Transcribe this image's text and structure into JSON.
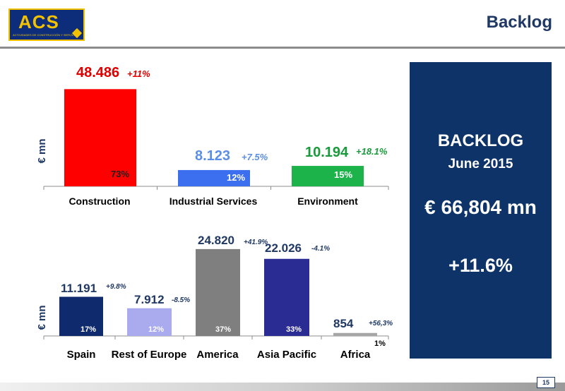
{
  "header": {
    "logo_text": "ACS",
    "logo_subtitle": "ACTIVIDADES DE CONSTRUCCIÓN Y SERVICIOS",
    "title": "Backlog"
  },
  "summary": {
    "heading": "BACKLOG",
    "date": "June 2015",
    "total": "€ 66,804 mn",
    "growth": "+11.6%"
  },
  "footer": {
    "page_number": "15"
  },
  "chart_data": [
    {
      "type": "bar",
      "ylabel": "€ mn",
      "categories": [
        "Construction",
        "Industrial Services",
        "Environment"
      ],
      "values": [
        48486,
        8123,
        10194
      ],
      "value_labels": [
        "48.486",
        "8.123",
        "10.194"
      ],
      "growth_labels": [
        "+11%",
        "+7.5%",
        "+18.1%"
      ],
      "share_labels": [
        "73%",
        "12%",
        "15%"
      ],
      "colors": [
        "#ff0000",
        "#3b6ff0",
        "#1db34b"
      ],
      "value_colors": [
        "#e00000",
        "#5b8ee6",
        "#1a9a3c"
      ],
      "growth_colors": [
        "#e00000",
        "#5b8ee6",
        "#1a9a3c"
      ],
      "ylim": [
        0,
        50000
      ],
      "grid": false
    },
    {
      "type": "bar",
      "ylabel": "€ mn",
      "categories": [
        "Spain",
        "Rest of Europe",
        "America",
        "Asia Pacific",
        "Africa"
      ],
      "values": [
        11191,
        7912,
        24820,
        22026,
        854
      ],
      "value_labels": [
        "11.191",
        "7.912",
        "24.820",
        "22.026",
        "854"
      ],
      "growth_labels": [
        "+9.8%",
        "-8.5%",
        "+41.9%",
        "-4.1%",
        "+56,3%"
      ],
      "share_labels": [
        "17%",
        "12%",
        "37%",
        "33%",
        "1%"
      ],
      "colors": [
        "#0f2b6e",
        "#aaaaee",
        "#7f7f7f",
        "#2b2b94",
        "#a6a6a6"
      ],
      "value_colors": [
        "#1f3864",
        "#1f3864",
        "#1f3864",
        "#1f3864",
        "#1f3864"
      ],
      "growth_colors": [
        "#1f3864",
        "#1f3864",
        "#1f3864",
        "#1f3864",
        "#1f3864"
      ],
      "ylim": [
        0,
        25000
      ],
      "grid": false
    }
  ]
}
